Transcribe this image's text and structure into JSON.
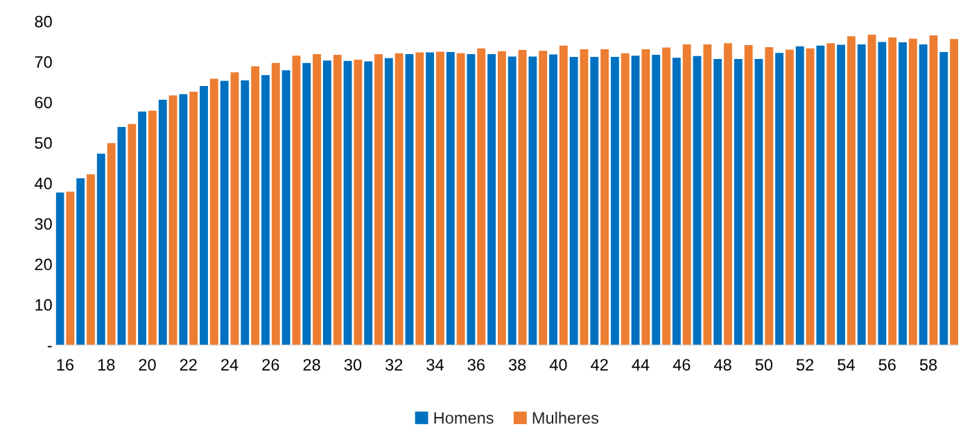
{
  "chart_data": {
    "type": "bar",
    "categories": [
      "16",
      null,
      "18",
      null,
      "20",
      null,
      "22",
      null,
      "24",
      null,
      "26",
      null,
      "28",
      null,
      "30",
      null,
      "32",
      null,
      "34",
      null,
      "36",
      null,
      "38",
      null,
      "40",
      null,
      "42",
      null,
      "44",
      null,
      "46",
      null,
      "48",
      null,
      "50",
      null,
      "52",
      null,
      "54",
      null,
      "56",
      null,
      "58",
      null
    ],
    "series": [
      {
        "name": "Homens",
        "color": "#0070c0",
        "values": [
          37.7,
          41.2,
          47.3,
          53.9,
          57.7,
          60.6,
          62.0,
          64.0,
          65.3,
          65.4,
          66.7,
          67.9,
          69.7,
          70.3,
          70.2,
          70.1,
          70.9,
          71.9,
          72.3,
          72.4,
          71.9,
          71.9,
          71.3,
          71.3,
          71.8,
          71.2,
          71.2,
          71.2,
          71.5,
          71.7,
          71.0,
          71.4,
          70.7,
          70.7,
          70.7,
          72.2,
          73.8,
          74.0,
          74.2,
          74.3,
          74.9,
          74.8,
          74.3,
          72.4
        ]
      },
      {
        "name": "Mulheres",
        "color": "#ed7d31",
        "values": [
          37.9,
          42.2,
          49.9,
          54.6,
          57.9,
          61.7,
          62.6,
          65.8,
          67.4,
          68.9,
          69.7,
          71.5,
          71.9,
          71.7,
          70.5,
          71.9,
          72.1,
          72.3,
          72.5,
          72.1,
          73.3,
          72.6,
          72.9,
          72.7,
          74.0,
          73.1,
          73.1,
          72.1,
          73.1,
          73.5,
          74.3,
          74.3,
          74.6,
          74.1,
          73.6,
          73.0,
          73.3,
          74.6,
          76.3,
          76.7,
          76.0,
          75.7,
          76.5,
          75.6
        ]
      }
    ],
    "ylim": [
      0,
      80
    ],
    "yticks": [
      {
        "value": 0,
        "label": "-"
      },
      10,
      20,
      30,
      40,
      50,
      60,
      70,
      80
    ],
    "grid": false,
    "legend": "bottom"
  }
}
